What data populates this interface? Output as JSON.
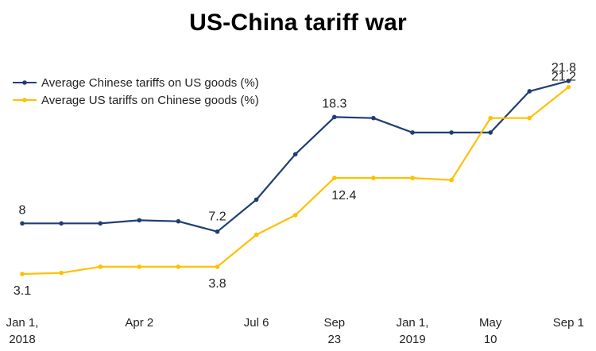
{
  "chart_data": {
    "type": "line",
    "title": "US-China tariff war",
    "xlabel": "",
    "ylabel": "",
    "ylim": [
      0,
      25
    ],
    "grid": false,
    "legend_position": "top-left",
    "x_tick_labels": [
      {
        "index": 0,
        "lines": [
          "Jan 1,",
          "2018"
        ]
      },
      {
        "index": 3,
        "lines": [
          "Apr 2"
        ]
      },
      {
        "index": 6,
        "lines": [
          "Jul 6"
        ]
      },
      {
        "index": 8,
        "lines": [
          "Sep",
          "23"
        ]
      },
      {
        "index": 10,
        "lines": [
          "Jan 1,",
          "2019"
        ]
      },
      {
        "index": 12,
        "lines": [
          "May",
          "10"
        ]
      },
      {
        "index": 14,
        "lines": [
          "Sep 1"
        ]
      }
    ],
    "series": [
      {
        "name": "Average Chinese tariffs on US goods (%)",
        "color": "#1f3e73",
        "values": [
          8,
          8,
          8,
          8.3,
          8.2,
          7.2,
          10.3,
          14.7,
          18.3,
          18.2,
          16.8,
          16.8,
          16.8,
          20.8,
          21.8
        ],
        "data_labels": [
          {
            "index": 0,
            "text": "8"
          },
          {
            "index": 5,
            "text": "7.2"
          },
          {
            "index": 8,
            "text": "18.3"
          },
          {
            "index": 14,
            "text": "21.8"
          }
        ]
      },
      {
        "name": "Average US tariffs on Chinese goods (%)",
        "color": "#ffc000",
        "values": [
          3.1,
          3.2,
          3.8,
          3.8,
          3.8,
          3.8,
          6.9,
          8.8,
          12.4,
          12.4,
          12.4,
          12.2,
          18.2,
          18.2,
          21.2
        ],
        "data_labels": [
          {
            "index": 0,
            "text": "3.1"
          },
          {
            "index": 5,
            "text": "3.8"
          },
          {
            "index": 8,
            "text": "12.4"
          },
          {
            "index": 14,
            "text": "21.2"
          }
        ]
      }
    ]
  }
}
